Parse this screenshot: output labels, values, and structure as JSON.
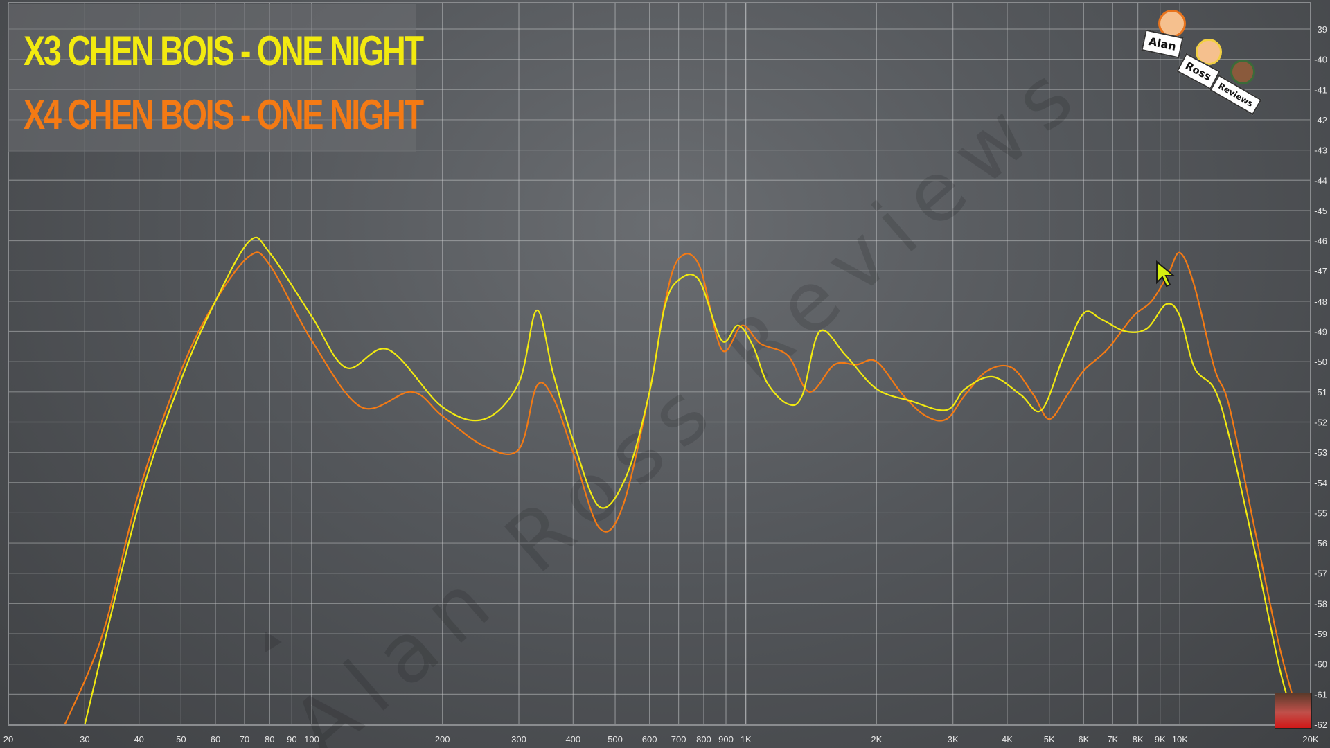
{
  "legend": {
    "line1": "X3 CHEN BOIS - ONE NIGHT",
    "line1_color": "#f2ea10",
    "line2": "X4 CHEN BOIS - ONE NIGHT",
    "line2_color": "#f47a14"
  },
  "watermark": "Alan Ross Reviews",
  "logo": {
    "card1": "Alan",
    "card2": "Ross",
    "card3": "Reviews"
  },
  "chart_data": {
    "type": "line",
    "x_scale": "log",
    "xlim": [
      20,
      20000
    ],
    "ylim": [
      -62,
      -39
    ],
    "grid": true,
    "legend_position": "top-left",
    "x_ticks": [
      {
        "v": 20,
        "l": "20"
      },
      {
        "v": 30,
        "l": "30"
      },
      {
        "v": 40,
        "l": "40"
      },
      {
        "v": 50,
        "l": "50"
      },
      {
        "v": 60,
        "l": "60"
      },
      {
        "v": 70,
        "l": "70"
      },
      {
        "v": 80,
        "l": "80"
      },
      {
        "v": 90,
        "l": "90"
      },
      {
        "v": 100,
        "l": "100"
      },
      {
        "v": 200,
        "l": "200"
      },
      {
        "v": 300,
        "l": "300"
      },
      {
        "v": 400,
        "l": "400"
      },
      {
        "v": 500,
        "l": "500"
      },
      {
        "v": 600,
        "l": "600"
      },
      {
        "v": 700,
        "l": "700"
      },
      {
        "v": 800,
        "l": "800"
      },
      {
        "v": 900,
        "l": "900"
      },
      {
        "v": 1000,
        "l": "1K"
      },
      {
        "v": 2000,
        "l": "2K"
      },
      {
        "v": 3000,
        "l": "3K"
      },
      {
        "v": 4000,
        "l": "4K"
      },
      {
        "v": 5000,
        "l": "5K"
      },
      {
        "v": 6000,
        "l": "6K"
      },
      {
        "v": 7000,
        "l": "7K"
      },
      {
        "v": 8000,
        "l": "8K"
      },
      {
        "v": 9000,
        "l": "9K"
      },
      {
        "v": 10000,
        "l": "10K"
      },
      {
        "v": 20000,
        "l": "20K"
      }
    ],
    "y_ticks": [
      {
        "v": -39,
        "l": "-39"
      },
      {
        "v": -40,
        "l": "-40"
      },
      {
        "v": -41,
        "l": "-41"
      },
      {
        "v": -42,
        "l": "-42"
      },
      {
        "v": -43,
        "l": "-43"
      },
      {
        "v": -44,
        "l": "-44"
      },
      {
        "v": -45,
        "l": "-45"
      },
      {
        "v": -46,
        "l": "-46"
      },
      {
        "v": -47,
        "l": "-47"
      },
      {
        "v": -48,
        "l": "-48"
      },
      {
        "v": -49,
        "l": "-49"
      },
      {
        "v": -50,
        "l": "-50"
      },
      {
        "v": -51,
        "l": "-51"
      },
      {
        "v": -52,
        "l": "-52"
      },
      {
        "v": -53,
        "l": "-53"
      },
      {
        "v": -54,
        "l": "-54"
      },
      {
        "v": -55,
        "l": "-55"
      },
      {
        "v": -56,
        "l": "-56"
      },
      {
        "v": -57,
        "l": "-57"
      },
      {
        "v": -58,
        "l": "-58"
      },
      {
        "v": -59,
        "l": "-59"
      },
      {
        "v": -60,
        "l": "-60"
      },
      {
        "v": -61,
        "l": "-61"
      },
      {
        "v": -62,
        "l": "-62"
      }
    ],
    "series": [
      {
        "name": "X3 CHEN BOIS - ONE NIGHT",
        "color": "#f2ea10",
        "points": [
          [
            30,
            -62
          ],
          [
            40,
            -54.7
          ],
          [
            50,
            -50.6
          ],
          [
            60,
            -48
          ],
          [
            72,
            -46
          ],
          [
            80,
            -46.4
          ],
          [
            100,
            -48.5
          ],
          [
            120,
            -50.2
          ],
          [
            150,
            -49.6
          ],
          [
            200,
            -51.5
          ],
          [
            250,
            -51.9
          ],
          [
            300,
            -50.7
          ],
          [
            330,
            -48.3
          ],
          [
            360,
            -50.4
          ],
          [
            400,
            -52.6
          ],
          [
            460,
            -54.8
          ],
          [
            530,
            -53.8
          ],
          [
            600,
            -51
          ],
          [
            650,
            -48.2
          ],
          [
            700,
            -47.3
          ],
          [
            780,
            -47.3
          ],
          [
            880,
            -49.3
          ],
          [
            960,
            -48.8
          ],
          [
            1040,
            -49.5
          ],
          [
            1120,
            -50.7
          ],
          [
            1250,
            -51.4
          ],
          [
            1350,
            -51.1
          ],
          [
            1480,
            -49
          ],
          [
            1700,
            -49.8
          ],
          [
            2000,
            -50.9
          ],
          [
            2400,
            -51.3
          ],
          [
            2900,
            -51.6
          ],
          [
            3200,
            -50.9
          ],
          [
            3700,
            -50.5
          ],
          [
            4300,
            -51.1
          ],
          [
            4800,
            -51.6
          ],
          [
            5400,
            -49.8
          ],
          [
            6000,
            -48.4
          ],
          [
            6600,
            -48.6
          ],
          [
            7500,
            -49
          ],
          [
            8400,
            -48.9
          ],
          [
            9300,
            -48.1
          ],
          [
            10000,
            -48.5
          ],
          [
            10800,
            -50.2
          ],
          [
            12000,
            -50.9
          ],
          [
            13000,
            -52.5
          ],
          [
            15000,
            -56.5
          ],
          [
            17000,
            -60.2
          ],
          [
            18500,
            -62
          ]
        ]
      },
      {
        "name": "X4 CHEN BOIS - ONE NIGHT",
        "color": "#f47a14",
        "points": [
          [
            27,
            -62
          ],
          [
            33,
            -59
          ],
          [
            40,
            -54.3
          ],
          [
            50,
            -50.3
          ],
          [
            60,
            -48
          ],
          [
            72,
            -46.5
          ],
          [
            80,
            -46.8
          ],
          [
            100,
            -49.3
          ],
          [
            130,
            -51.5
          ],
          [
            170,
            -51
          ],
          [
            200,
            -51.8
          ],
          [
            250,
            -52.8
          ],
          [
            300,
            -52.9
          ],
          [
            330,
            -50.8
          ],
          [
            360,
            -51.2
          ],
          [
            400,
            -53
          ],
          [
            460,
            -55.5
          ],
          [
            520,
            -54.8
          ],
          [
            600,
            -51
          ],
          [
            650,
            -48.1
          ],
          [
            700,
            -46.6
          ],
          [
            780,
            -46.8
          ],
          [
            880,
            -49.6
          ],
          [
            980,
            -48.8
          ],
          [
            1080,
            -49.4
          ],
          [
            1250,
            -49.8
          ],
          [
            1400,
            -51
          ],
          [
            1600,
            -50.1
          ],
          [
            1800,
            -50.1
          ],
          [
            2000,
            -50
          ],
          [
            2300,
            -51.1
          ],
          [
            2600,
            -51.8
          ],
          [
            2900,
            -51.9
          ],
          [
            3200,
            -51.1
          ],
          [
            3600,
            -50.3
          ],
          [
            4100,
            -50.2
          ],
          [
            4600,
            -51.1
          ],
          [
            5000,
            -51.9
          ],
          [
            5500,
            -51.1
          ],
          [
            6000,
            -50.3
          ],
          [
            6800,
            -49.6
          ],
          [
            7800,
            -48.5
          ],
          [
            8600,
            -48
          ],
          [
            9400,
            -47.1
          ],
          [
            10000,
            -46.4
          ],
          [
            10800,
            -47.5
          ],
          [
            12000,
            -50.2
          ],
          [
            13000,
            -51.5
          ],
          [
            15000,
            -55.8
          ],
          [
            17000,
            -59.5
          ],
          [
            19000,
            -62
          ]
        ]
      }
    ]
  }
}
